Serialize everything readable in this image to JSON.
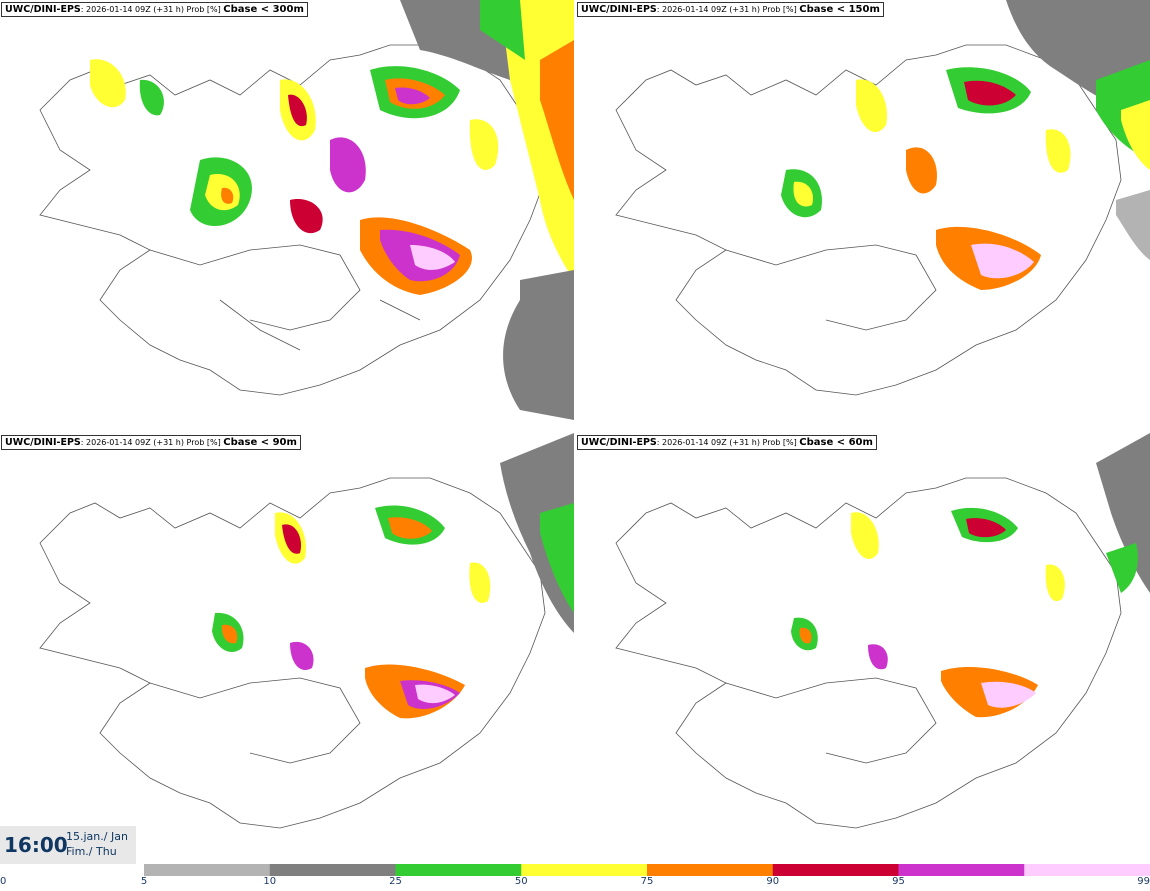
{
  "panels": [
    {
      "model": "UWC/DINI-EPS",
      "run": ": 2026-01-14 09Z (+31 h) Prob [%]",
      "threshold": "Cbase < 300m"
    },
    {
      "model": "UWC/DINI-EPS",
      "run": ": 2026-01-14 09Z (+31 h) Prob [%]",
      "threshold": "Cbase < 150m"
    },
    {
      "model": "UWC/DINI-EPS",
      "run": ": 2026-01-14 09Z (+31 h) Prob [%]",
      "threshold": "Cbase < 90m"
    },
    {
      "model": "UWC/DINI-EPS",
      "run": ": 2026-01-14 09Z (+31 h) Prob [%]",
      "threshold": "Cbase < 60m"
    }
  ],
  "valid_time": {
    "time": "16:00",
    "date_line1": "15.jan./ Jan",
    "date_line2": "Fim./ Thu"
  },
  "colorbar": {
    "ticks": [
      "0",
      "5",
      "10",
      "25",
      "50",
      "75",
      "90",
      "95",
      "99"
    ],
    "colors": [
      "#b3b3b3",
      "#7f7f7f",
      "#33cc33",
      "#ffff33",
      "#ff7f00",
      "#cc0033",
      "#cc33cc",
      "#ffccff"
    ]
  },
  "map_levels": {
    "gray_light": "#b3b3b3",
    "gray_dark": "#7f7f7f",
    "green": "#33cc33",
    "yellow": "#ffff33",
    "orange": "#ff7f00",
    "red": "#cc0033",
    "magenta": "#cc33cc",
    "pink": "#ffccff"
  }
}
